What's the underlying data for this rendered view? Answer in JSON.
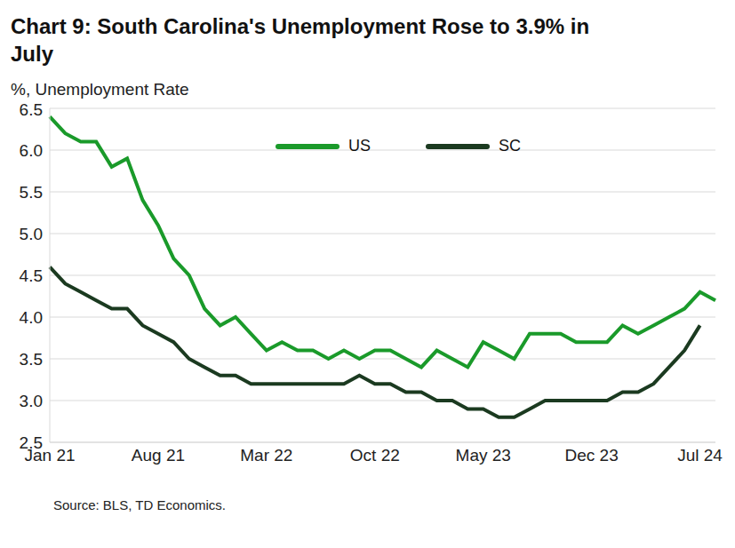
{
  "chart_data": {
    "type": "line",
    "title": "Chart 9: South Carolina's Unemployment Rose to 3.9% in July",
    "y_label": "%, Unemployment Rate",
    "source": "Source: BLS, TD Economics.",
    "categories": [
      "Jan 21",
      null,
      null,
      null,
      null,
      null,
      null,
      "Aug 21",
      null,
      null,
      null,
      null,
      null,
      null,
      "Mar 22",
      null,
      null,
      null,
      null,
      null,
      null,
      "Oct 22",
      null,
      null,
      null,
      null,
      null,
      null,
      "May 23",
      null,
      null,
      null,
      null,
      null,
      null,
      "Dec 23",
      null,
      null,
      null,
      null,
      null,
      null,
      "Jul 24",
      null
    ],
    "series": [
      {
        "name": "US",
        "color": "#1a9a2a",
        "values": [
          6.4,
          6.2,
          6.1,
          6.1,
          5.8,
          5.9,
          5.4,
          5.1,
          4.7,
          4.5,
          4.1,
          3.9,
          4.0,
          3.8,
          3.6,
          3.7,
          3.6,
          3.6,
          3.5,
          3.6,
          3.5,
          3.6,
          3.6,
          3.5,
          3.4,
          3.6,
          3.5,
          3.4,
          3.7,
          3.6,
          3.5,
          3.8,
          3.8,
          3.8,
          3.7,
          3.7,
          3.7,
          3.9,
          3.8,
          3.9,
          4.0,
          4.1,
          4.3,
          4.2
        ]
      },
      {
        "name": "SC",
        "color": "#1b3a20",
        "values": [
          4.6,
          4.4,
          4.3,
          4.2,
          4.1,
          4.1,
          3.9,
          3.8,
          3.7,
          3.5,
          3.4,
          3.3,
          3.3,
          3.2,
          3.2,
          3.2,
          3.2,
          3.2,
          3.2,
          3.2,
          3.3,
          3.2,
          3.2,
          3.1,
          3.1,
          3.0,
          3.0,
          2.9,
          2.9,
          2.8,
          2.8,
          2.9,
          3.0,
          3.0,
          3.0,
          3.0,
          3.0,
          3.1,
          3.1,
          3.2,
          3.4,
          3.6,
          3.9,
          null
        ]
      }
    ],
    "ylim": [
      2.5,
      6.5
    ],
    "yticks": [
      2.5,
      {
        "value": 3,
        "label": "3.0"
      },
      3.5,
      {
        "value": 4,
        "label": "4.0"
      },
      4.5,
      {
        "value": 5,
        "label": "5.0"
      },
      5.5,
      {
        "value": 6,
        "label": "6.0"
      },
      6.5
    ],
    "grid": true
  }
}
